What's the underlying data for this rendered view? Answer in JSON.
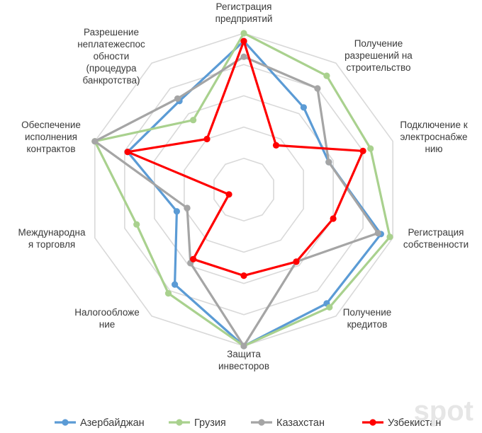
{
  "chart_data": {
    "type": "radar",
    "categories": [
      "Регистрация предприятий",
      "Получение разрешений на строительство",
      "Подключение к электроснабжению",
      "Регистрация собственности",
      "Получение кредитов",
      "Защита инвесторов",
      "Налогообложение",
      "Международная торговля",
      "Обеспечение исполнения контрактов",
      "Разрешение неплатежеспособности (процедура банкротства)"
    ],
    "category_label_lines": [
      [
        "Регистрация",
        "предприятий"
      ],
      [
        "Получение",
        "разрешений на",
        "строительство"
      ],
      [
        "Подключение к",
        "электроснабже",
        "нию"
      ],
      [
        "Регистрация",
        "собственности"
      ],
      [
        "Получение",
        "кредитов"
      ],
      [
        "Защита",
        "инвесторов"
      ],
      [
        "Налогообложе",
        "ние"
      ],
      [
        "Международна",
        "я торговля"
      ],
      [
        "Обеспечение",
        "исполнения",
        "контрактов"
      ],
      [
        "Разрешение",
        "неплатежеспос",
        "обности",
        "(процедура",
        "банкротства)"
      ]
    ],
    "series": [
      {
        "name": "Азербайджан",
        "color": "#5b9bd5",
        "values": [
          95,
          65,
          57,
          92,
          90,
          100,
          75,
          45,
          78,
          70
        ]
      },
      {
        "name": "Грузия",
        "color": "#a9d18e",
        "values": [
          100,
          90,
          85,
          98,
          93,
          100,
          82,
          72,
          100,
          55
        ]
      },
      {
        "name": "Казахстан",
        "color": "#a5a5a5",
        "values": [
          85,
          80,
          57,
          90,
          57,
          100,
          58,
          38,
          100,
          72
        ]
      },
      {
        "name": "Узбекистан",
        "color": "#ff0000",
        "values": [
          95,
          35,
          80,
          60,
          57,
          55,
          55,
          10,
          78,
          40
        ]
      }
    ],
    "rmax": 100,
    "grid_rings": 5,
    "grid": true,
    "legend_position": "bottom"
  },
  "watermark": "spot"
}
